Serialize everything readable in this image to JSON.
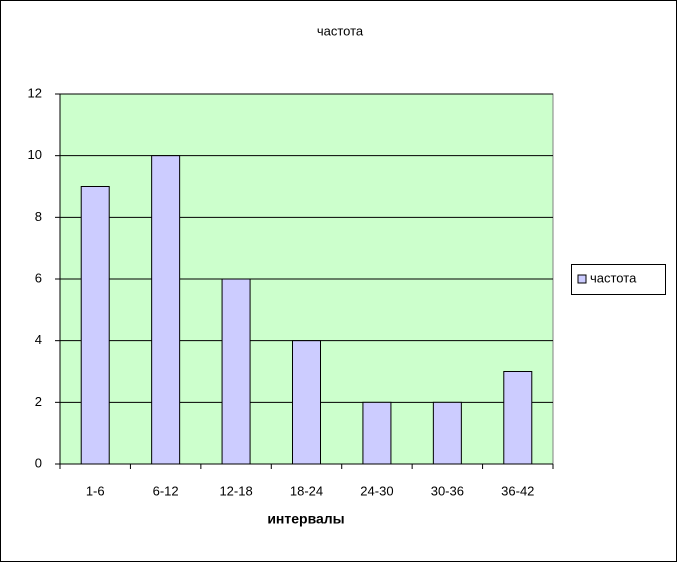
{
  "chart_data": {
    "type": "bar",
    "title": "частота",
    "x_label": "интервалы",
    "categories": [
      "1-6",
      "6-12",
      "12-18",
      "18-24",
      "24-30",
      "30-36",
      "36-42"
    ],
    "series": [
      {
        "name": "частота",
        "color": "#ccccff",
        "values": [
          9,
          10,
          6,
          4,
          2,
          2,
          3
        ]
      }
    ],
    "ylim": [
      0,
      12
    ],
    "yticks": [
      0,
      2,
      4,
      6,
      8,
      10,
      12
    ],
    "grid": true,
    "legend": "right",
    "plot_background": "#ccffcc"
  }
}
